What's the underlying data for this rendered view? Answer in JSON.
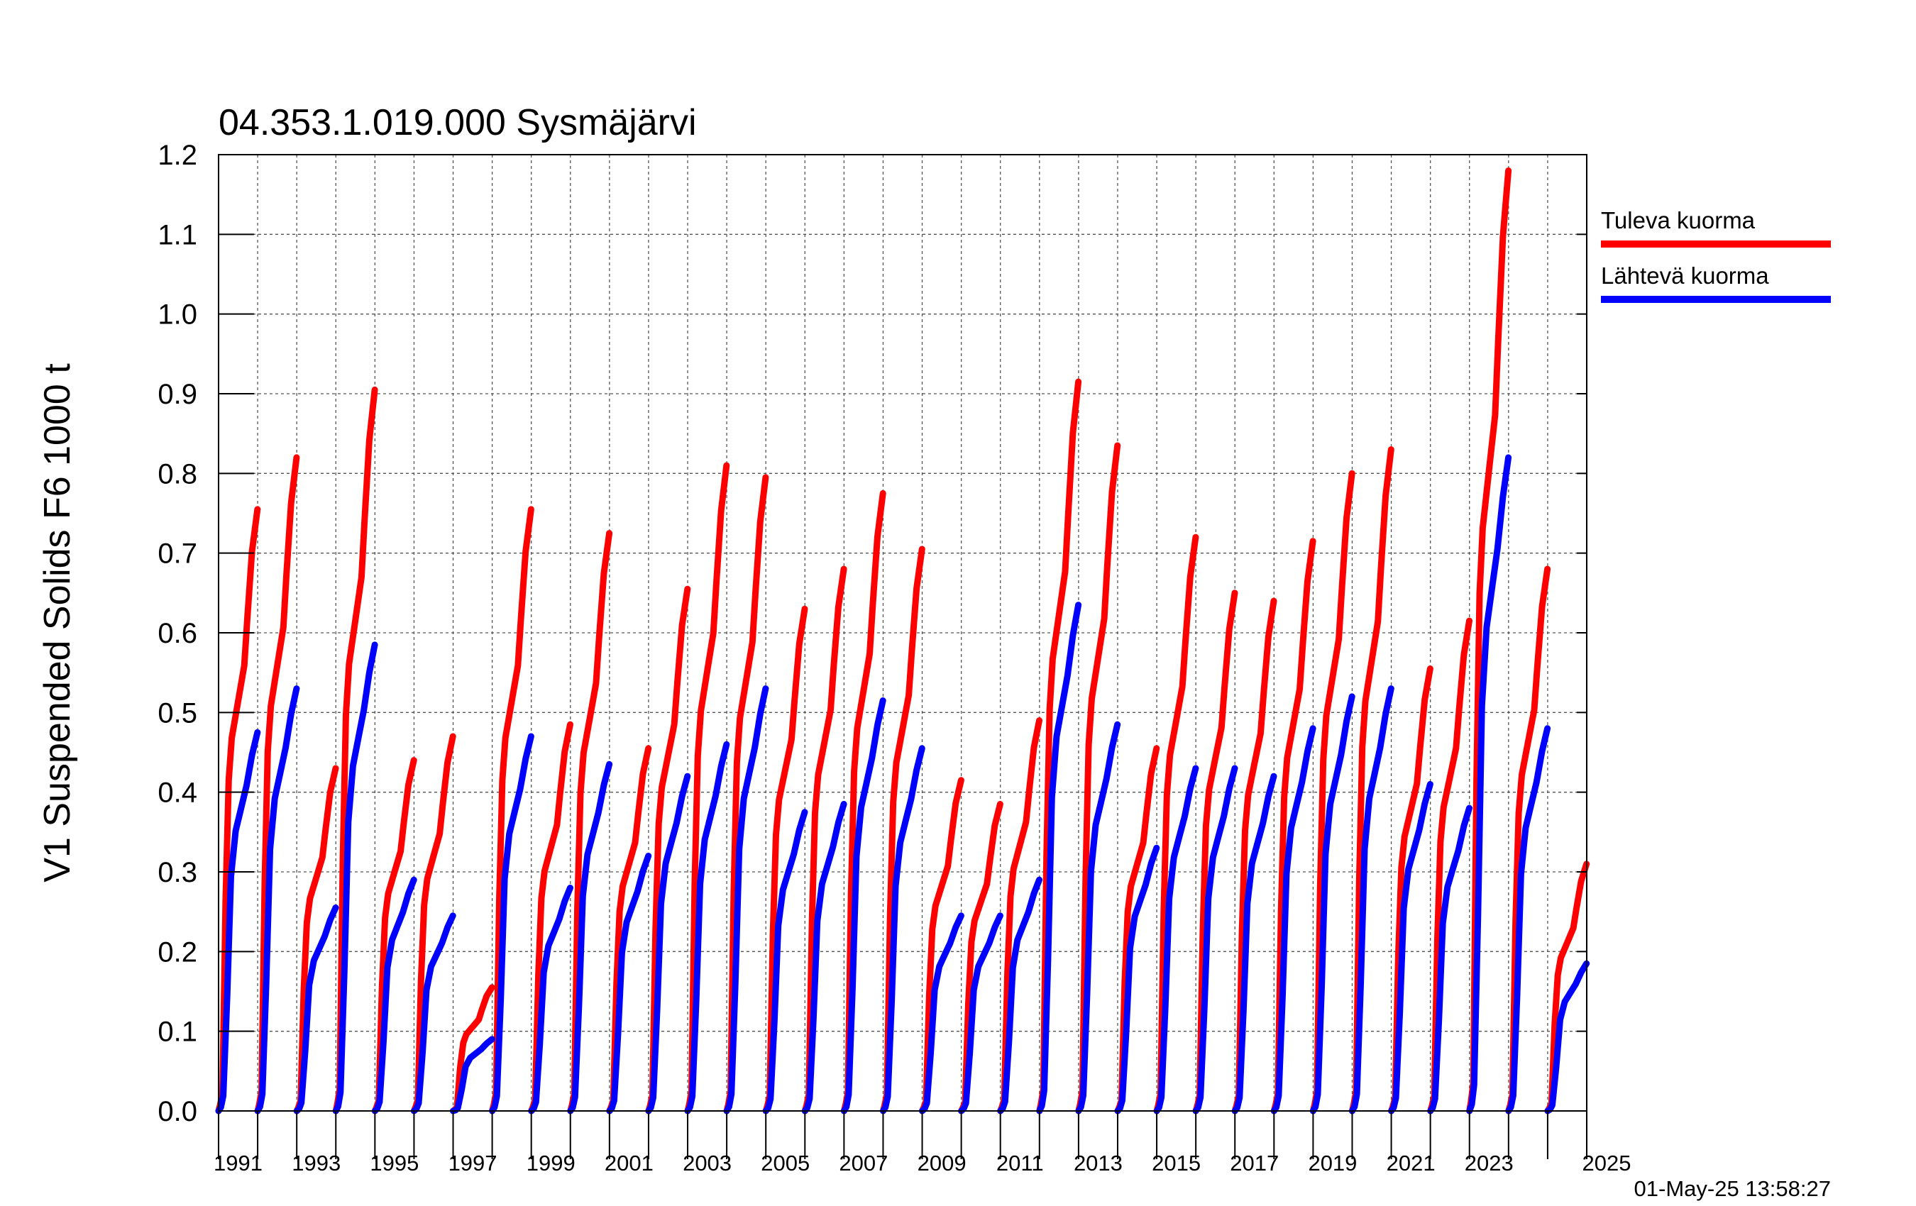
{
  "chart_data": {
    "type": "line",
    "title": "04.353.1.019.000 Sysmäjärvi",
    "ylabel": "V1 Suspended Solids F6 1000 t",
    "xlabel": "",
    "xlim": [
      1990,
      2025
    ],
    "ylim": [
      0,
      1.2
    ],
    "yticks": [
      "0.0",
      "0.1",
      "0.2",
      "0.3",
      "0.4",
      "0.5",
      "0.6",
      "0.7",
      "0.8",
      "0.9",
      "1.0",
      "1.1",
      "1.2"
    ],
    "xtick_labels": [
      "1991",
      "1993",
      "1995",
      "1997",
      "1999",
      "2001",
      "2003",
      "2005",
      "2007",
      "2009",
      "2011",
      "2013",
      "2015",
      "2017",
      "2019",
      "2021",
      "2023",
      "2025"
    ],
    "grid": true,
    "legend_position": "right",
    "timestamp": "01-May-25 13:58:27",
    "series": [
      {
        "name": "Tuleva kuorma",
        "color": "#ff0000",
        "annual_max": [
          0.755,
          0.82,
          0.43,
          0.905,
          0.44,
          0.47,
          0.155,
          0.755,
          0.485,
          0.725,
          0.455,
          0.655,
          0.81,
          0.795,
          0.63,
          0.68,
          0.775,
          0.705,
          0.415,
          0.385,
          0.49,
          0.915,
          0.835,
          0.455,
          0.72,
          0.65,
          0.64,
          0.715,
          0.8,
          0.83,
          0.555,
          0.615,
          1.18,
          0.68,
          0.31
        ]
      },
      {
        "name": "Lähtevä kuorma",
        "color": "#0000ff",
        "annual_max": [
          0.475,
          0.53,
          0.255,
          0.585,
          0.29,
          0.245,
          0.09,
          0.47,
          0.28,
          0.435,
          0.32,
          0.42,
          0.46,
          0.53,
          0.375,
          0.385,
          0.515,
          0.455,
          0.245,
          0.245,
          0.29,
          0.635,
          0.485,
          0.33,
          0.43,
          0.43,
          0.42,
          0.48,
          0.52,
          0.53,
          0.41,
          0.38,
          0.82,
          0.48,
          0.185
        ]
      }
    ]
  }
}
